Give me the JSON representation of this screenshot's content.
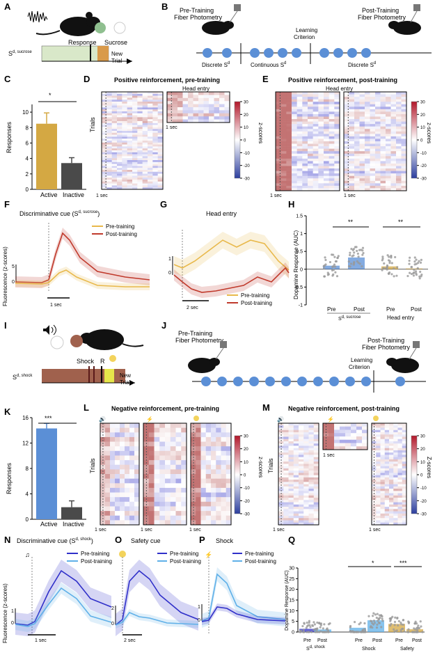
{
  "panels": {
    "A": {
      "letter": "A",
      "cue": "S",
      "cue_sup": "d, sucrose",
      "response": "Response",
      "sucrose": "Sucrose",
      "new_trial": "New",
      "new_trial2": "Trial"
    },
    "B": {
      "letter": "B",
      "pre": "Pre-Training",
      "pre2": "Fiber Photometry",
      "post": "Post-Training",
      "post2": "Fiber Photometry",
      "learning": "Learning",
      "learning2": "Criterion",
      "seg1": "Discrete S",
      "seg1_sup": "d",
      "seg2": "Continuous S",
      "seg2_sup": "d",
      "seg3": "Discrete S",
      "seg3_sup": "d"
    },
    "C": {
      "letter": "C",
      "ylabel": "Responses",
      "sig": "*",
      "yticks": [
        "0",
        "2",
        "4",
        "6",
        "8",
        "10"
      ],
      "categories": [
        "Active",
        "Inactive"
      ]
    },
    "D": {
      "letter": "D",
      "title": "Positive reinforcement, pre-training",
      "sub": "Head entry",
      "ylabel": "Trials",
      "scale": "1 sec",
      "scale2": "1 sec"
    },
    "E": {
      "letter": "E",
      "title": "Positive reinforcement, post-training",
      "sub": "Head entry",
      "scale": "1 sec",
      "scale2": "1 sec",
      "cbar_label": "z-scores",
      "cbar_ticks": [
        "30",
        "20",
        "10",
        "0",
        "-10",
        "-20",
        "-30"
      ]
    },
    "D_cbar": {
      "label": "z-scores",
      "ticks": [
        "30",
        "20",
        "10",
        "0",
        "-10",
        "-20",
        "-30"
      ]
    },
    "F": {
      "letter": "F",
      "title": "Discriminative cue (S",
      "title_sup": "d, sucrose",
      "title_end": ")",
      "ylabel": "Fluorescence (z-scores)",
      "ytick": "5",
      "ytick0": "0",
      "scale": "1 sec",
      "legend_pre": "Pre-training",
      "legend_post": "Post-training"
    },
    "G": {
      "letter": "G",
      "title": "Head entry",
      "ytick": "1",
      "ytick0": "0",
      "scale": "2 sec",
      "legend_pre": "Pre-training",
      "legend_post": "Post-training"
    },
    "H": {
      "letter": "H",
      "ylabel": "Dopamine Response (AUC)",
      "yticks": [
        "1.5",
        "1",
        "0.5",
        "0",
        "-0.5",
        "-1"
      ],
      "xlabels": [
        "Pre",
        "Post",
        "Pre",
        "Post"
      ],
      "group1": "S",
      "group1_sup": "d, sucrose",
      "group2": "Head entry",
      "sig1": "**",
      "sig2": "**"
    },
    "I": {
      "letter": "I",
      "shock": "Shock",
      "r": "R",
      "cue": "S",
      "cue_sup": "d, shock",
      "new_trial": "New",
      "new_trial2": "Trial"
    },
    "J": {
      "letter": "J",
      "pre": "Pre-Training",
      "pre2": "Fiber Photometry",
      "post": "Post-Training",
      "post2": "Fiber Photometry",
      "learning": "Learning",
      "learning2": "Criterion"
    },
    "K": {
      "letter": "K",
      "ylabel": "Responses",
      "sig": "***",
      "yticks": [
        "0",
        "4",
        "8",
        "12",
        "16"
      ],
      "categories": [
        "Active",
        "Inactive"
      ]
    },
    "L": {
      "letter": "L",
      "title": "Negative reinforcement, pre-training",
      "ylabel": "Trials",
      "scale": "1 sec",
      "scale2": "1 sec",
      "scale3": "1 sec",
      "cbar_label": "z-scores",
      "cbar_ticks": [
        "30",
        "20",
        "10",
        "0",
        "-10",
        "-20",
        "-30"
      ]
    },
    "M": {
      "letter": "M",
      "title": "Negative reinforcement, post-training",
      "ylabel": "Trials",
      "scale": "1 sec",
      "scale2": "1 sec",
      "scale3": "1 sec",
      "cbar_label": "Z-scores",
      "cbar_ticks": [
        "30",
        "20",
        "10",
        "0",
        "-10",
        "-20",
        "-30"
      ]
    },
    "N": {
      "letter": "N",
      "title": "Discriminative cue (S",
      "title_sup": "d, shock",
      "title_end": ")",
      "ylabel": "Fluorescence (z-scores)",
      "ytick": "1",
      "ytick0": "0",
      "scale": "1 sec",
      "legend_pre": "Pre-training",
      "legend_post": "Post-training"
    },
    "O": {
      "letter": "O",
      "title": "Safety cue",
      "ytick": "2",
      "ytick0": "0",
      "scale": "2 sec",
      "legend_pre": "Pre-training",
      "legend_post": "Post-training"
    },
    "P": {
      "letter": "P",
      "title": "Shock",
      "ytick": "1",
      "ytick0": "0",
      "legend_pre": "Pre-training",
      "legend_post": "Post-training"
    },
    "Q": {
      "letter": "Q",
      "ylabel": "Dopamine Response (AUC)",
      "yticks": [
        "30",
        "25",
        "20",
        "15",
        "10",
        "5",
        "0"
      ],
      "xlabels": [
        "Pre",
        "Post",
        "Pre",
        "Post",
        "Pre",
        "Post"
      ],
      "group1": "S",
      "group1_sup": "d, shock",
      "group2": "Shock",
      "group3": "Safety",
      "sig1": "*",
      "sig2": "***"
    }
  },
  "colors": {
    "gold": "#d4a843",
    "dark": "#4a4a4a",
    "blue": "#5b8fd6",
    "red": "#c0392b",
    "pre_line": "#e8b84a",
    "post_line": "#c0392b",
    "darkblue": "#2f2fc9",
    "lightblue": "#5fb0e8",
    "brown": "#a0614d",
    "green": "#d9e8c9",
    "orange": "#d99a4a"
  },
  "chart_data": [
    {
      "type": "bar",
      "panel": "C",
      "categories": [
        "Active",
        "Inactive"
      ],
      "values": [
        8.5,
        3.4
      ],
      "errors": [
        1.4,
        0.7
      ],
      "ylim": [
        0,
        11
      ],
      "ylabel": "Responses"
    },
    {
      "type": "bar",
      "panel": "K",
      "categories": [
        "Active",
        "Inactive"
      ],
      "values": [
        14.3,
        1.9
      ],
      "errors": [
        0.8,
        1.0
      ],
      "ylim": [
        0,
        16
      ],
      "ylabel": "Responses"
    },
    {
      "type": "bar",
      "panel": "H",
      "categories": [
        "Pre",
        "Post",
        "Pre",
        "Post"
      ],
      "values": [
        0.1,
        0.33,
        0.08,
        0.02
      ],
      "ylim": [
        -1,
        1.5
      ],
      "ylabel": "Dopamine Response (AUC)"
    },
    {
      "type": "bar",
      "panel": "Q",
      "categories": [
        "Pre",
        "Post",
        "Pre",
        "Post",
        "Pre",
        "Post"
      ],
      "values": [
        1.5,
        1.2,
        2.0,
        5.5,
        3.8,
        1.3
      ],
      "ylim": [
        0,
        30
      ],
      "ylabel": "Dopamine Response (AUC)"
    }
  ]
}
